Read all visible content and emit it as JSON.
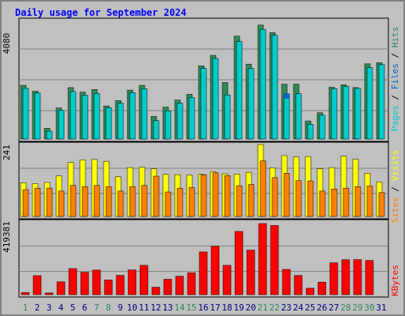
{
  "title": "Daily usage for September 2024",
  "colors": {
    "background": "#c0c0c0",
    "panel": "#c0c0c0",
    "hits": "#00cccc",
    "files": "#0066cc",
    "pages": "#00cccc",
    "pages_dark": "#2e8b57",
    "sites": "#ff8000",
    "visits": "#ffff00",
    "kbytes": "#ff0000",
    "weekend": "#2e8b57",
    "weekday": "#000080"
  },
  "axis_labels": {
    "top_max": "4080",
    "middle_max": "241",
    "bottom_max": "419381"
  },
  "legends": {
    "top": [
      "Hits",
      "Files",
      "Pages"
    ],
    "middle": [
      "Visits",
      "Sites"
    ],
    "bottom": [
      "KBytes"
    ],
    "separator": " / "
  },
  "chart_data": [
    {
      "type": "bar",
      "categories": [
        "1",
        "2",
        "3",
        "4",
        "5",
        "6",
        "7",
        "8",
        "9",
        "10",
        "11",
        "12",
        "13",
        "14",
        "15",
        "16",
        "17",
        "18",
        "19",
        "20",
        "21",
        "22",
        "23",
        "24",
        "25",
        "26",
        "27",
        "28",
        "29",
        "30",
        "31"
      ],
      "weekend_days": [
        1,
        7,
        8,
        14,
        15,
        21,
        22,
        28,
        29,
        30
      ],
      "series": [
        {
          "name": "Hits",
          "values": [
            1900,
            1690,
            380,
            1100,
            1820,
            1660,
            1750,
            1170,
            1360,
            1730,
            1900,
            800,
            1130,
            1380,
            1580,
            2590,
            2960,
            2000,
            3640,
            2650,
            4030,
            3760,
            1940,
            1940,
            640,
            930,
            1830,
            1920,
            1820,
            2660,
            2700
          ]
        },
        {
          "name": "Files",
          "values": [
            1790,
            1630,
            280,
            1010,
            1680,
            1550,
            1610,
            1110,
            1270,
            1640,
            1780,
            650,
            1000,
            1270,
            1470,
            2500,
            2850,
            1560,
            3450,
            2500,
            3880,
            3670,
            1600,
            1600,
            520,
            840,
            1780,
            1860,
            1790,
            2530,
            2630
          ]
        },
        {
          "name": "Pages",
          "values": [
            1700,
            1580,
            200,
            960,
            1600,
            1490,
            1530,
            1070,
            1190,
            1560,
            1700,
            550,
            900,
            1180,
            1390,
            2400,
            2740,
            1480,
            3330,
            2420,
            3790,
            3570,
            1500,
            1480,
            380,
            780,
            1700,
            1810,
            1720,
            2440,
            2560
          ]
        }
      ],
      "ylim": [
        0,
        4080
      ]
    },
    {
      "type": "bar",
      "categories": [
        "1",
        "2",
        "3",
        "4",
        "5",
        "6",
        "7",
        "8",
        "9",
        "10",
        "11",
        "12",
        "13",
        "14",
        "15",
        "16",
        "17",
        "18",
        "19",
        "20",
        "21",
        "22",
        "23",
        "24",
        "25",
        "26",
        "27",
        "28",
        "29",
        "30",
        "31"
      ],
      "series": [
        {
          "name": "Visits",
          "values": [
            113,
            110,
            114,
            136,
            181,
            190,
            191,
            185,
            133,
            164,
            165,
            160,
            141,
            140,
            139,
            141,
            150,
            143,
            142,
            148,
            241,
            163,
            204,
            200,
            201,
            160,
            164,
            202,
            192,
            145,
            116
          ]
        },
        {
          "name": "Sites",
          "values": [
            90,
            95,
            95,
            85,
            104,
            100,
            104,
            100,
            85,
            100,
            104,
            135,
            82,
            95,
            97,
            140,
            146,
            137,
            103,
            107,
            186,
            130,
            145,
            120,
            119,
            85,
            92,
            95,
            100,
            102,
            80
          ]
        }
      ],
      "ylim": [
        0,
        241
      ]
    },
    {
      "type": "bar",
      "categories": [
        "1",
        "2",
        "3",
        "4",
        "5",
        "6",
        "7",
        "8",
        "9",
        "10",
        "11",
        "12",
        "13",
        "14",
        "15",
        "16",
        "17",
        "18",
        "19",
        "20",
        "21",
        "22",
        "23",
        "24",
        "25",
        "26",
        "27",
        "28",
        "29",
        "30",
        "31"
      ],
      "series": [
        {
          "name": "KBytes",
          "values": [
            13000,
            112000,
            10000,
            76000,
            154000,
            132000,
            145000,
            87000,
            114000,
            146000,
            173000,
            44000,
            91000,
            109000,
            129000,
            252000,
            286000,
            173000,
            373000,
            263000,
            419381,
            408000,
            149000,
            113000,
            38000,
            74000,
            188000,
            206000,
            207000,
            202000,
            0
          ]
        }
      ],
      "ylim": [
        0,
        419381
      ]
    }
  ]
}
